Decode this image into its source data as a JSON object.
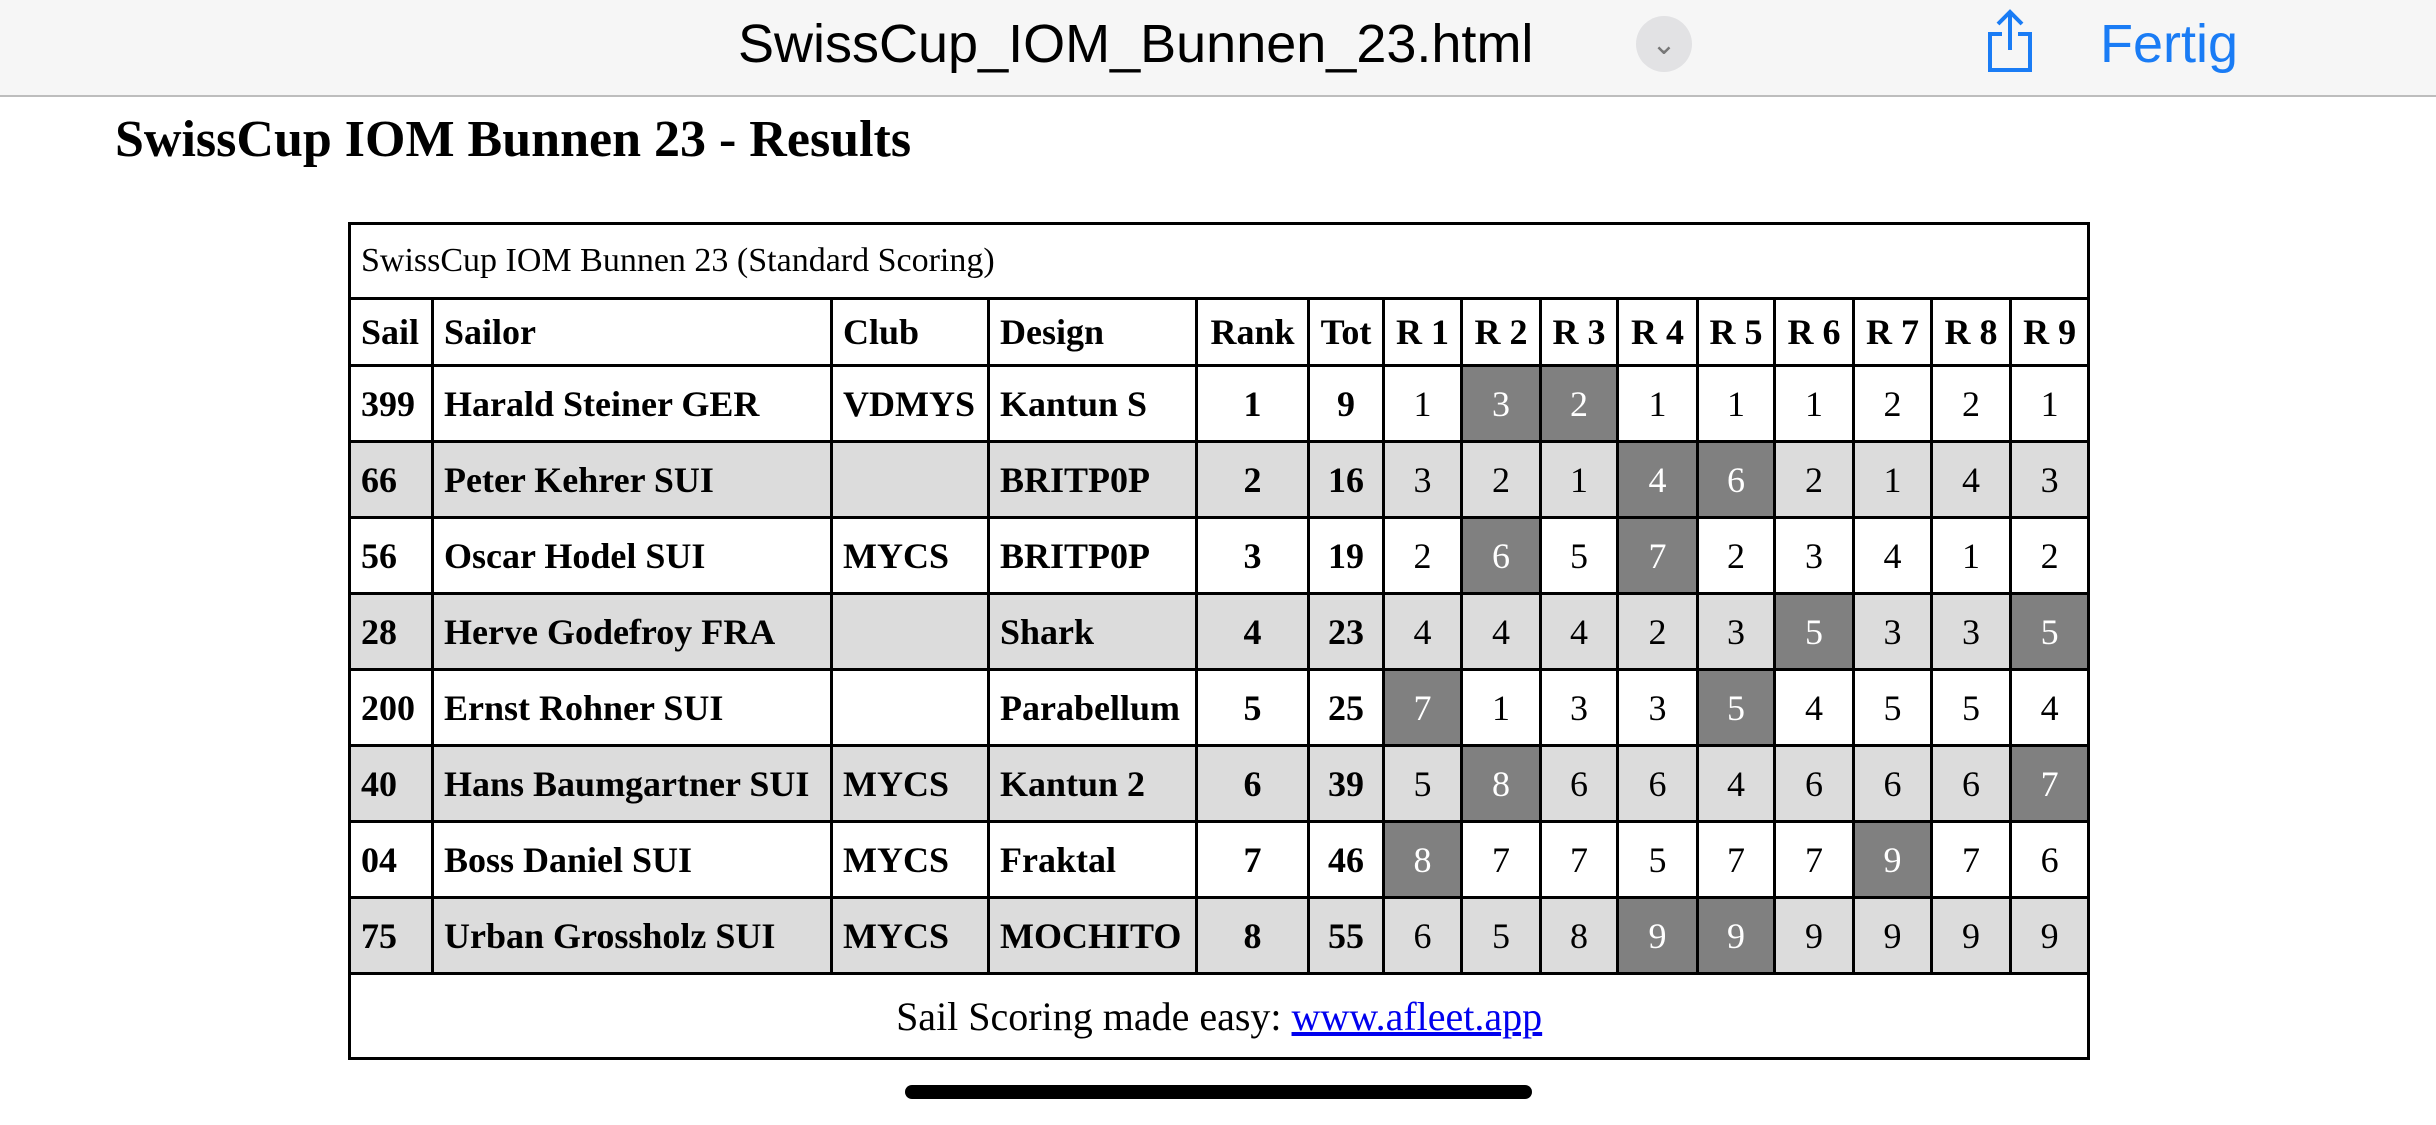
{
  "browser": {
    "doc_title": "SwissCup_IOM_Bunnen_23.html",
    "done_label": "Fertig",
    "accent": "#1a7cf5"
  },
  "page": {
    "title": "SwissCup IOM Bunnen 23 - Results"
  },
  "table": {
    "caption": "SwissCup IOM Bunnen 23 (Standard Scoring)",
    "headers": [
      "Sail",
      "Sailor",
      "Club",
      "Design",
      "Rank",
      "Tot",
      "R 1",
      "R 2",
      "R 3",
      "R 4",
      "R 5",
      "R 6",
      "R 7",
      "R 8",
      "R 9"
    ],
    "rows": [
      {
        "sail": "399",
        "sailor": "Harald Steiner GER",
        "club": "VDMYS",
        "design": "Kantun S",
        "rank": "1",
        "tot": "9",
        "races": [
          "1",
          "3",
          "2",
          "1",
          "1",
          "1",
          "2",
          "2",
          "1"
        ],
        "discards": [
          1,
          2
        ]
      },
      {
        "sail": "66",
        "sailor": "Peter Kehrer SUI",
        "club": "",
        "design": "BRITP0P",
        "rank": "2",
        "tot": "16",
        "races": [
          "3",
          "2",
          "1",
          "4",
          "6",
          "2",
          "1",
          "4",
          "3"
        ],
        "discards": [
          3,
          4
        ]
      },
      {
        "sail": "56",
        "sailor": "Oscar Hodel SUI",
        "club": "MYCS",
        "design": "BRITP0P",
        "rank": "3",
        "tot": "19",
        "races": [
          "2",
          "6",
          "5",
          "7",
          "2",
          "3",
          "4",
          "1",
          "2"
        ],
        "discards": [
          1,
          3
        ]
      },
      {
        "sail": "28",
        "sailor": "Herve Godefroy FRA",
        "club": "",
        "design": "Shark",
        "rank": "4",
        "tot": "23",
        "races": [
          "4",
          "4",
          "4",
          "2",
          "3",
          "5",
          "3",
          "3",
          "5"
        ],
        "discards": [
          5,
          8
        ]
      },
      {
        "sail": "200",
        "sailor": "Ernst Rohner SUI",
        "club": "",
        "design": "Parabellum",
        "rank": "5",
        "tot": "25",
        "races": [
          "7",
          "1",
          "3",
          "3",
          "5",
          "4",
          "5",
          "5",
          "4"
        ],
        "discards": [
          0,
          4
        ]
      },
      {
        "sail": "40",
        "sailor": "Hans Baumgartner SUI",
        "club": "MYCS",
        "design": "Kantun 2",
        "rank": "6",
        "tot": "39",
        "races": [
          "5",
          "8",
          "6",
          "6",
          "4",
          "6",
          "6",
          "6",
          "7"
        ],
        "discards": [
          1,
          8
        ]
      },
      {
        "sail": "04",
        "sailor": "Boss Daniel SUI",
        "club": "MYCS",
        "design": "Fraktal",
        "rank": "7",
        "tot": "46",
        "races": [
          "8",
          "7",
          "7",
          "5",
          "7",
          "7",
          "9",
          "7",
          "6"
        ],
        "discards": [
          0,
          6
        ]
      },
      {
        "sail": "75",
        "sailor": "Urban Grossholz SUI",
        "club": "MYCS",
        "design": "MOCHITO",
        "rank": "8",
        "tot": "55",
        "races": [
          "6",
          "5",
          "8",
          "9",
          "9",
          "9",
          "9",
          "9",
          "9"
        ],
        "discards": [
          3,
          4
        ]
      }
    ],
    "footer_text": "Sail Scoring made easy: ",
    "footer_link": "www.afleet.app",
    "colors": {
      "alt_row": "#dcdcdc",
      "discard": "#808080"
    }
  }
}
